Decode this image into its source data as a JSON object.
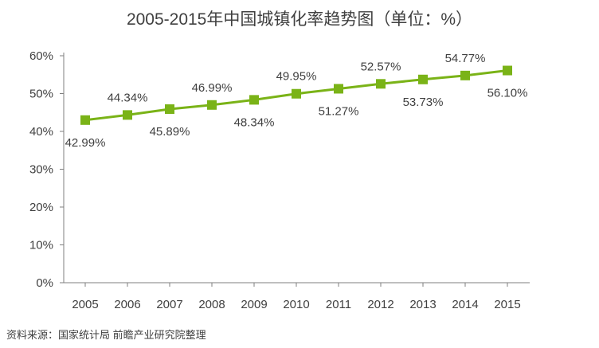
{
  "title": "2005-2015年中国城镇化率趋势图（单位：%）",
  "source": "资料来源：国家统计局 前瞻产业研究院整理",
  "chart_data": {
    "type": "line",
    "title": "2005-2015年中国城镇化率趋势图（单位：%）",
    "x": [
      "2005",
      "2006",
      "2007",
      "2008",
      "2009",
      "2010",
      "2011",
      "2012",
      "2013",
      "2014",
      "2015"
    ],
    "series": [
      {
        "values": [
          42.99,
          44.34,
          45.89,
          46.99,
          48.34,
          49.95,
          51.27,
          52.57,
          53.73,
          54.77,
          56.1
        ],
        "labels": [
          "42.99%",
          "44.34%",
          "45.89%",
          "46.99%",
          "48.34%",
          "49.95%",
          "51.27%",
          "52.57%",
          "53.73%",
          "54.77%",
          "56.10%"
        ],
        "color": "#7ab317",
        "marker": "square"
      }
    ],
    "y_ticks": [
      "0%",
      "10%",
      "20%",
      "30%",
      "40%",
      "50%",
      "60%"
    ],
    "ylim": [
      0,
      60
    ],
    "grid": false,
    "legend": "none"
  }
}
